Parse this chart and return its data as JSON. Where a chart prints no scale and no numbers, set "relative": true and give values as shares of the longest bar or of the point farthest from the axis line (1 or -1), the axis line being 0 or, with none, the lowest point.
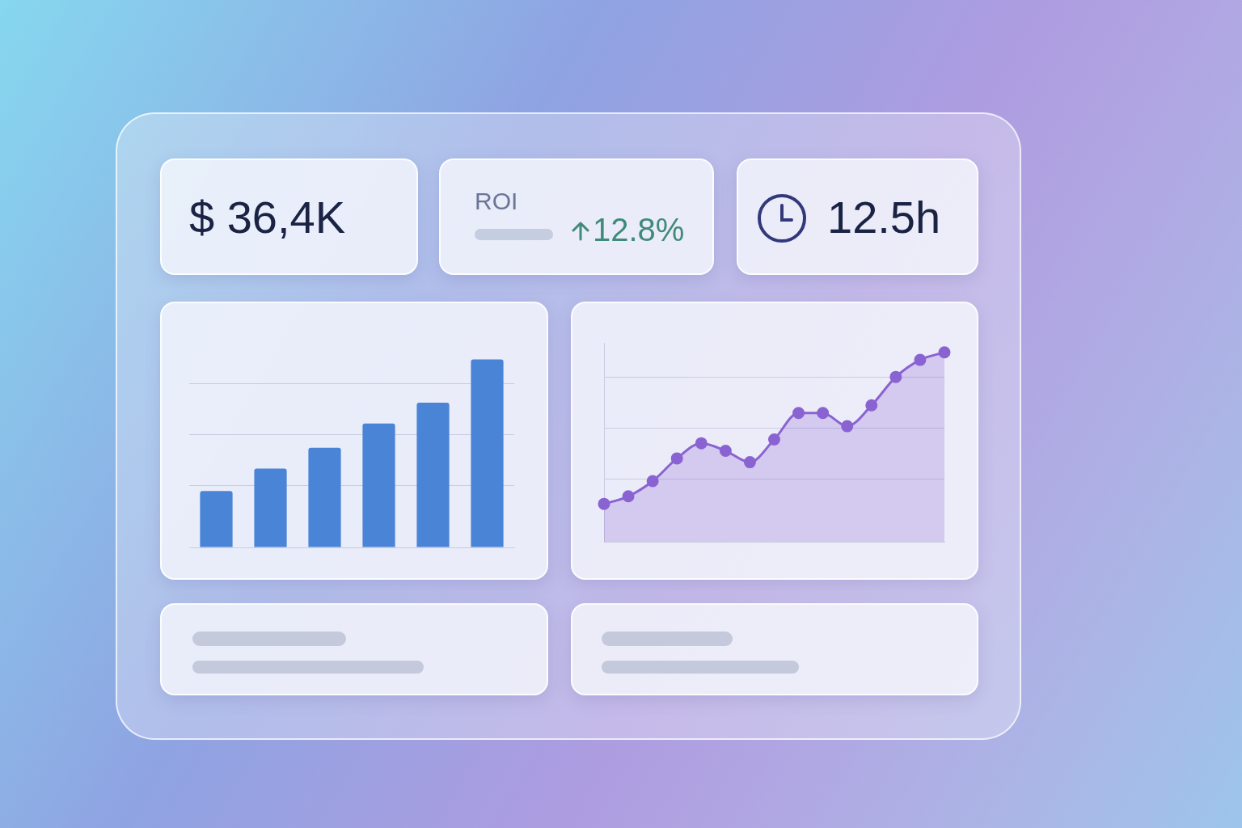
{
  "chart_data": [
    {
      "type": "other",
      "annotations": [
        "$ 36,4K",
        "ROI",
        "12.8%",
        "12.5h"
      ]
    },
    {
      "type": "bar",
      "categories": [
        null,
        null,
        null,
        null,
        null,
        null
      ],
      "values": [
        0.3,
        0.42,
        0.53,
        0.66,
        0.77,
        1
      ],
      "relative": true,
      "color": "#4a84d6",
      "grid": "y"
    },
    {
      "type": "area",
      "categories": [
        null,
        null,
        null,
        null,
        null,
        null,
        null,
        null,
        null,
        null,
        null,
        null,
        null,
        null,
        null
      ],
      "values": [
        0.2,
        0.24,
        0.32,
        0.44,
        0.52,
        0.48,
        0.42,
        0.54,
        0.68,
        0.68,
        0.61,
        0.72,
        0.87,
        0.96,
        1
      ],
      "relative": true,
      "color": "#8a63d2",
      "marker": "circle",
      "grid": "y"
    }
  ]
}
